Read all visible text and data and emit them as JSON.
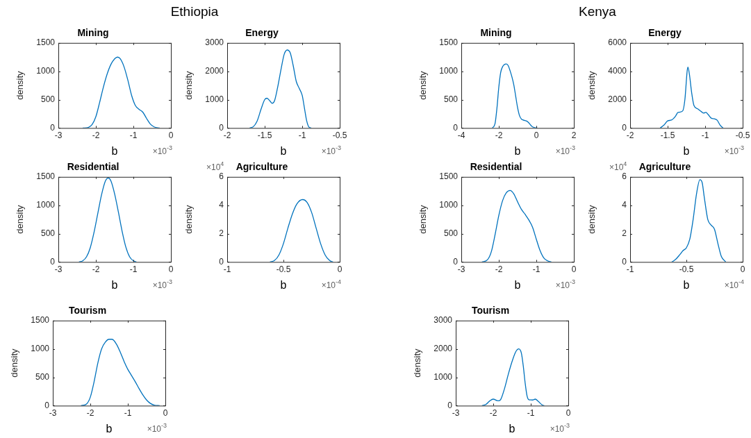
{
  "chart_data": [
    {
      "type": "other",
      "title": "Ethiopia"
    },
    {
      "type": "line",
      "title": "Mining",
      "xlabel": "b",
      "ylabel": "density",
      "color": "#0072bd",
      "xlim": [
        -3,
        0
      ],
      "xticks": [
        -3,
        -2,
        -1,
        0
      ],
      "ylim": [
        0,
        1500
      ],
      "yticks": [
        0,
        500,
        1000,
        1500
      ],
      "annotations": [
        "×10$^{-3}$"
      ],
      "x": [
        -2.35,
        -2.2,
        -2.1,
        -2.0,
        -1.9,
        -1.8,
        -1.7,
        -1.6,
        -1.5,
        -1.42,
        -1.35,
        -1.25,
        -1.15,
        -1.05,
        -0.95,
        -0.85,
        -0.75,
        -0.65,
        -0.55,
        -0.45,
        -0.3
      ],
      "values": [
        0,
        10,
        60,
        200,
        450,
        720,
        950,
        1120,
        1220,
        1250,
        1220,
        1080,
        850,
        580,
        400,
        330,
        280,
        170,
        70,
        20,
        0
      ]
    },
    {
      "type": "line",
      "title": "Energy",
      "xlabel": "b",
      "ylabel": "density",
      "color": "#0072bd",
      "xlim": [
        -2,
        -0.5
      ],
      "xticks": [
        -2,
        -1.5,
        -1,
        -0.5
      ],
      "ylim": [
        0,
        3000
      ],
      "yticks": [
        0,
        1000,
        2000,
        3000
      ],
      "annotations": [
        "×10$^{-3}$"
      ],
      "x": [
        -1.7,
        -1.65,
        -1.6,
        -1.55,
        -1.5,
        -1.47,
        -1.43,
        -1.4,
        -1.37,
        -1.33,
        -1.28,
        -1.24,
        -1.2,
        -1.16,
        -1.12,
        -1.08,
        -1.04,
        -1.0,
        -0.97,
        -0.94,
        -0.91,
        -0.88
      ],
      "values": [
        0,
        50,
        250,
        650,
        1000,
        1050,
        950,
        870,
        950,
        1400,
        2100,
        2600,
        2750,
        2650,
        2200,
        1650,
        1400,
        1150,
        700,
        250,
        30,
        0
      ]
    },
    {
      "type": "line",
      "title": "Residential",
      "xlabel": "b",
      "ylabel": "density",
      "color": "#0072bd",
      "xlim": [
        -3,
        0
      ],
      "xticks": [
        -3,
        -2,
        -1,
        0
      ],
      "ylim": [
        0,
        1500
      ],
      "yticks": [
        0,
        500,
        1000,
        1500
      ],
      "annotations": [
        "×10$^{-3}$"
      ],
      "x": [
        -2.45,
        -2.35,
        -2.25,
        -2.15,
        -2.05,
        -1.95,
        -1.85,
        -1.75,
        -1.67,
        -1.6,
        -1.5,
        -1.4,
        -1.3,
        -1.2,
        -1.1,
        -1.0,
        -0.92
      ],
      "values": [
        0,
        20,
        90,
        250,
        520,
        850,
        1180,
        1420,
        1480,
        1430,
        1200,
        880,
        540,
        260,
        90,
        20,
        0
      ]
    },
    {
      "type": "line",
      "title": "Agriculture",
      "xlabel": "b",
      "ylabel": "density",
      "color": "#0072bd",
      "xlim": [
        -1,
        0
      ],
      "xticks": [
        -1,
        -0.5,
        0
      ],
      "ylim": [
        0,
        6
      ],
      "yticks": [
        0,
        2,
        4,
        6
      ],
      "annotations": [
        "×10$^{4}$",
        "×10$^{-4}$"
      ],
      "x": [
        -0.62,
        -0.58,
        -0.54,
        -0.5,
        -0.46,
        -0.42,
        -0.38,
        -0.33,
        -0.29,
        -0.25,
        -0.21,
        -0.17,
        -0.13,
        -0.09,
        -0.06
      ],
      "values": [
        0,
        0.1,
        0.5,
        1.3,
        2.4,
        3.4,
        4.1,
        4.4,
        4.2,
        3.5,
        2.4,
        1.3,
        0.5,
        0.1,
        0
      ]
    },
    {
      "type": "line",
      "title": "Tourism",
      "xlabel": "b",
      "ylabel": "density",
      "color": "#0072bd",
      "xlim": [
        -3,
        0
      ],
      "xticks": [
        -3,
        -2,
        -1,
        0
      ],
      "ylim": [
        0,
        1500
      ],
      "yticks": [
        0,
        500,
        1000,
        1500
      ],
      "annotations": [
        "×10$^{-3}$"
      ],
      "x": [
        -2.25,
        -2.1,
        -2.0,
        -1.9,
        -1.8,
        -1.7,
        -1.6,
        -1.5,
        -1.42,
        -1.3,
        -1.2,
        -1.1,
        -1.0,
        -0.9,
        -0.8,
        -0.7,
        -0.6,
        -0.5,
        -0.4,
        -0.3,
        -0.15
      ],
      "values": [
        0,
        30,
        150,
        420,
        750,
        1000,
        1120,
        1170,
        1170,
        1080,
        940,
        780,
        640,
        530,
        420,
        300,
        190,
        100,
        40,
        10,
        0
      ]
    },
    {
      "type": "other",
      "title": "Kenya"
    },
    {
      "type": "line",
      "title": "Mining",
      "xlabel": "b",
      "ylabel": "density",
      "color": "#0072bd",
      "xlim": [
        -4,
        2
      ],
      "xticks": [
        -4,
        -2,
        0,
        2
      ],
      "ylim": [
        0,
        1500
      ],
      "yticks": [
        0,
        500,
        1000,
        1500
      ],
      "annotations": [
        "×10$^{-3}$"
      ],
      "x": [
        -2.35,
        -2.2,
        -2.1,
        -2.0,
        -1.9,
        -1.8,
        -1.6,
        -1.5,
        -1.4,
        -1.3,
        -1.2,
        -1.1,
        -1.0,
        -0.9,
        -0.8,
        -0.7,
        -0.5,
        -0.4,
        -0.3,
        -0.2,
        0.05
      ],
      "values": [
        0,
        80,
        350,
        720,
        980,
        1080,
        1130,
        1100,
        1010,
        900,
        760,
        560,
        360,
        220,
        160,
        140,
        120,
        90,
        50,
        20,
        0
      ]
    },
    {
      "type": "line",
      "title": "Energy",
      "xlabel": "b",
      "ylabel": "density",
      "color": "#0072bd",
      "xlim": [
        -2,
        -0.5
      ],
      "xticks": [
        -2,
        -1.5,
        -1,
        -0.5
      ],
      "ylim": [
        0,
        6000
      ],
      "yticks": [
        0,
        2000,
        4000,
        6000
      ],
      "annotations": [
        "×10$^{-3}$"
      ],
      "x": [
        -1.6,
        -1.55,
        -1.5,
        -1.45,
        -1.4,
        -1.36,
        -1.3,
        -1.27,
        -1.24,
        -1.23,
        -1.21,
        -1.18,
        -1.15,
        -1.1,
        -1.05,
        -1.02,
        -0.99,
        -0.96,
        -0.92,
        -0.88,
        -0.84,
        -0.8,
        -0.76
      ],
      "values": [
        0,
        200,
        500,
        560,
        800,
        1100,
        1200,
        2000,
        4000,
        4300,
        3800,
        2500,
        1600,
        1350,
        1150,
        1050,
        1100,
        950,
        700,
        650,
        550,
        200,
        0
      ]
    },
    {
      "type": "line",
      "title": "Residential",
      "xlabel": "b",
      "ylabel": "density",
      "color": "#0072bd",
      "xlim": [
        -3,
        0
      ],
      "xticks": [
        -3,
        -2,
        -1,
        0
      ],
      "ylim": [
        0,
        1500
      ],
      "yticks": [
        0,
        500,
        1000,
        1500
      ],
      "annotations": [
        "×10$^{-3}$"
      ],
      "x": [
        -2.45,
        -2.3,
        -2.2,
        -2.1,
        -2.0,
        -1.9,
        -1.8,
        -1.7,
        -1.6,
        -1.5,
        -1.4,
        -1.3,
        -1.2,
        -1.1,
        -1.0,
        -0.9,
        -0.8,
        -0.7,
        -0.6
      ],
      "values": [
        0,
        40,
        180,
        480,
        820,
        1080,
        1220,
        1260,
        1200,
        1060,
        930,
        840,
        740,
        610,
        400,
        200,
        70,
        20,
        0
      ]
    },
    {
      "type": "line",
      "title": "Agriculture",
      "xlabel": "b",
      "ylabel": "density",
      "color": "#0072bd",
      "xlim": [
        -1,
        0
      ],
      "xticks": [
        -1,
        -0.5,
        0
      ],
      "ylim": [
        0,
        6
      ],
      "yticks": [
        0,
        2,
        4,
        6
      ],
      "annotations": [
        "×10$^{4}$",
        "×10$^{-4}$"
      ],
      "x": [
        -0.63,
        -0.6,
        -0.56,
        -0.53,
        -0.5,
        -0.47,
        -0.44,
        -0.41,
        -0.38,
        -0.36,
        -0.34,
        -0.31,
        -0.28,
        -0.25,
        -0.22,
        -0.19,
        -0.15
      ],
      "values": [
        0,
        0.15,
        0.5,
        0.8,
        1.0,
        1.6,
        3.0,
        4.8,
        5.8,
        5.6,
        4.5,
        3.0,
        2.6,
        2.3,
        1.3,
        0.4,
        0
      ]
    },
    {
      "type": "line",
      "title": "Tourism",
      "xlabel": "b",
      "ylabel": "density",
      "color": "#0072bd",
      "xlim": [
        -3,
        0
      ],
      "xticks": [
        -3,
        -2,
        -1,
        0
      ],
      "ylim": [
        0,
        3000
      ],
      "yticks": [
        0,
        1000,
        2000,
        3000
      ],
      "annotations": [
        "×10$^{-3}$"
      ],
      "x": [
        -2.3,
        -2.2,
        -2.1,
        -2.0,
        -1.9,
        -1.85,
        -1.8,
        -1.7,
        -1.6,
        -1.5,
        -1.4,
        -1.32,
        -1.25,
        -1.2,
        -1.15,
        -1.1,
        -1.05,
        -0.95,
        -0.88,
        -0.8,
        -0.7,
        -0.64
      ],
      "values": [
        0,
        40,
        160,
        230,
        180,
        170,
        220,
        600,
        1100,
        1550,
        1900,
        2000,
        1850,
        1400,
        800,
        350,
        210,
        200,
        230,
        150,
        30,
        0
      ]
    }
  ]
}
